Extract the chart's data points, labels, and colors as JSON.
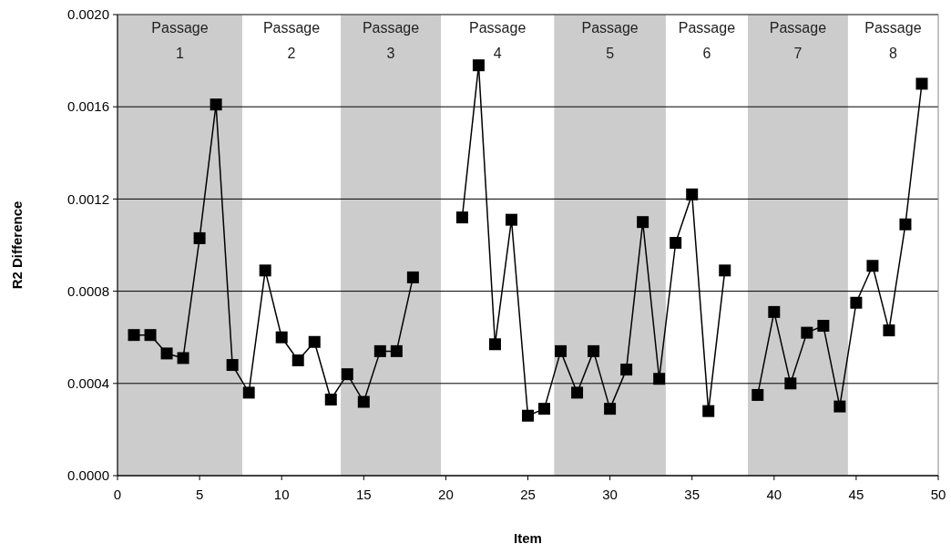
{
  "chart_data": {
    "type": "line",
    "xlabel": "Item",
    "ylabel": "R2 Difference",
    "x": [
      1,
      2,
      3,
      4,
      5,
      6,
      7,
      8,
      9,
      10,
      11,
      12,
      13,
      14,
      15,
      16,
      17,
      18,
      19,
      20,
      21,
      22,
      23,
      24,
      25,
      26,
      27,
      28,
      29,
      30,
      31,
      32,
      33,
      34,
      35,
      36,
      37,
      38,
      39,
      40,
      41,
      42,
      43,
      44,
      45,
      46,
      47,
      48,
      49
    ],
    "series": [
      {
        "color": "#000000",
        "values": [
          0.00061,
          0.00061,
          0.00053,
          0.00051,
          0.00103,
          0.00161,
          0.00048,
          0.00036,
          0.00089,
          0.0006,
          0.0005,
          0.00058,
          0.00033,
          0.00044,
          0.00032,
          0.00054,
          0.00054,
          0.00086,
          null,
          null,
          0.00112,
          0.00178,
          0.00057,
          0.00111,
          0.00026,
          0.00029,
          0.00054,
          0.00036,
          0.00054,
          0.00029,
          0.00046,
          0.0011,
          0.00042,
          0.00101,
          0.00122,
          0.00028,
          0.00089,
          null,
          0.00035,
          0.00071,
          0.0004,
          0.00062,
          0.00065,
          0.0003,
          0.00075,
          0.00091,
          0.00063,
          0.00109,
          0.0017
        ]
      }
    ],
    "marker": "square",
    "line_style": "solid",
    "grid": "y",
    "xlim": [
      0,
      50
    ],
    "xticks": [
      0,
      5,
      10,
      15,
      20,
      25,
      30,
      35,
      40,
      45,
      50
    ],
    "ylim": [
      0,
      0.002
    ],
    "yticks": [
      {
        "value": 0,
        "label": "0.0000"
      },
      {
        "value": 0.0004,
        "label": "0.0004"
      },
      {
        "value": 0.0008,
        "label": "0.0008"
      },
      {
        "value": 0.0012,
        "label": "0.0012"
      },
      {
        "value": 0.0016,
        "label": "0.0016"
      },
      {
        "value": 0.002,
        "label": "0.0020"
      }
    ],
    "bands": [
      {
        "axis": "x",
        "from": 0,
        "to": 7.6,
        "label": "Passage 1",
        "color": "#cccccc"
      },
      {
        "axis": "x",
        "from": 13.6,
        "to": 19.7,
        "label": "Passage 3",
        "color": "#cccccc"
      },
      {
        "axis": "x",
        "from": 26.6,
        "to": 33.4,
        "label": "Passage 5",
        "color": "#cccccc"
      },
      {
        "axis": "x",
        "from": 38.4,
        "to": 44.5,
        "label": "Passage 7",
        "color": "#cccccc"
      }
    ],
    "annotations": [
      "Passage 2",
      "Passage 4",
      "Passage 6",
      "Passage 8"
    ]
  }
}
